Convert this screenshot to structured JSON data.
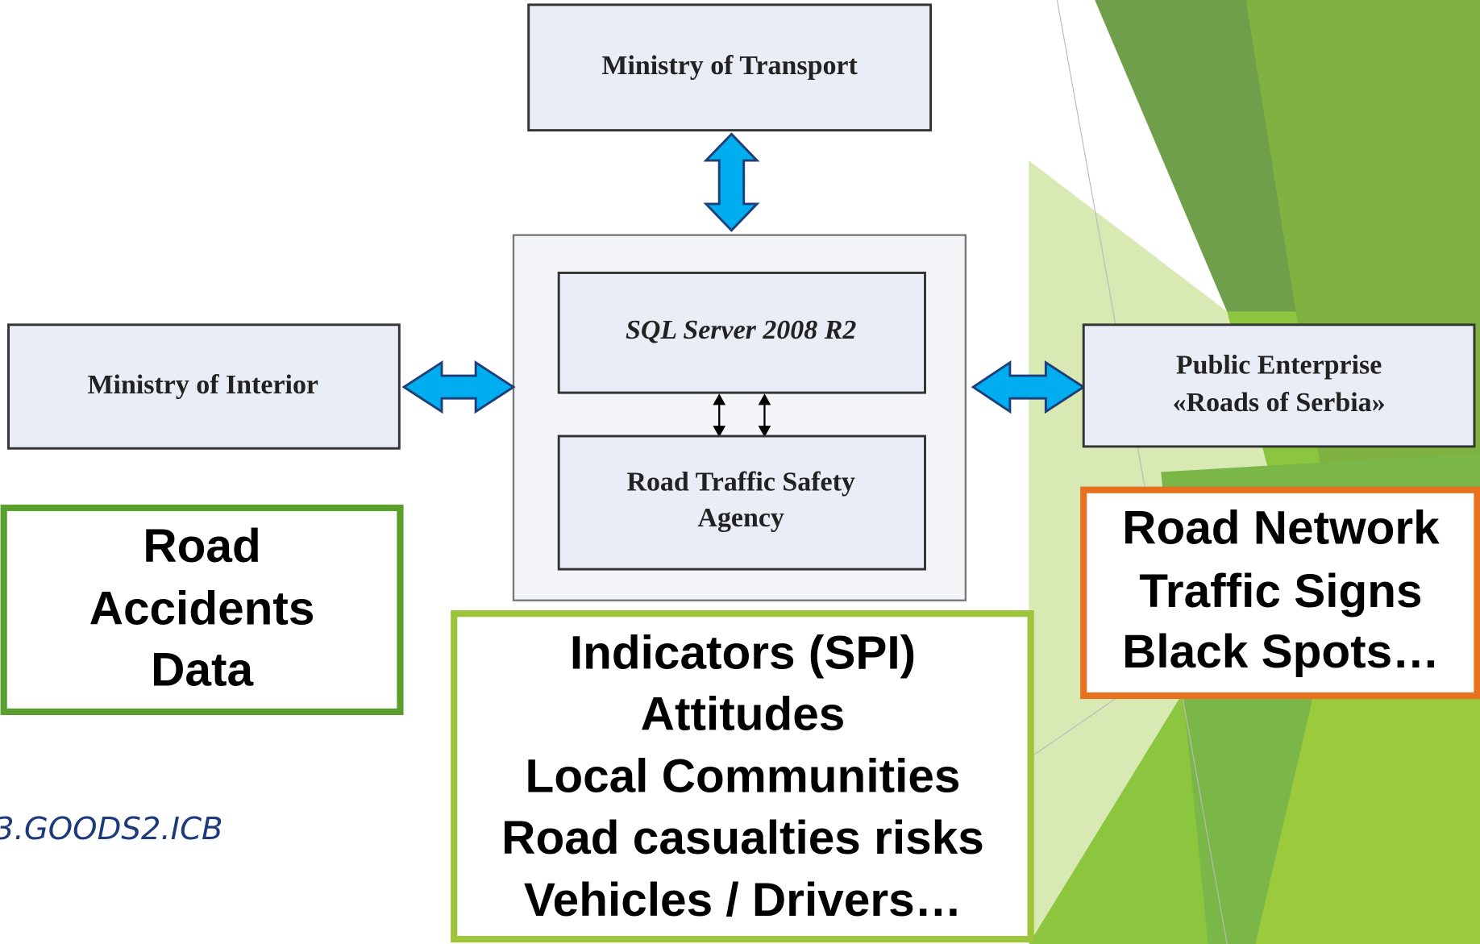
{
  "nodes": [
    {
      "label": [
        "Ministry of Transport"
      ]
    },
    {
      "label": [
        "SQL Server 2008 R2"
      ]
    },
    {
      "label": [
        "Road Traffic Safety",
        "Agency"
      ]
    },
    {
      "label": [
        "Ministry of Interior"
      ]
    },
    {
      "label": [
        "Public Enterprise",
        "«Roads of Serbia»"
      ]
    }
  ],
  "callouts": [
    {
      "lines": [
        "Road",
        "Accidents",
        "Data"
      ]
    },
    {
      "lines": [
        "Indicators (SPI)",
        "Attitudes",
        "Local Communities",
        "Road casualties risks",
        "Vehicles / Drivers…"
      ]
    },
    {
      "lines": [
        "Road Network",
        "Traffic Signs",
        "Black Spots…"
      ]
    }
  ],
  "footer": "3.GOODS2.ICB"
}
